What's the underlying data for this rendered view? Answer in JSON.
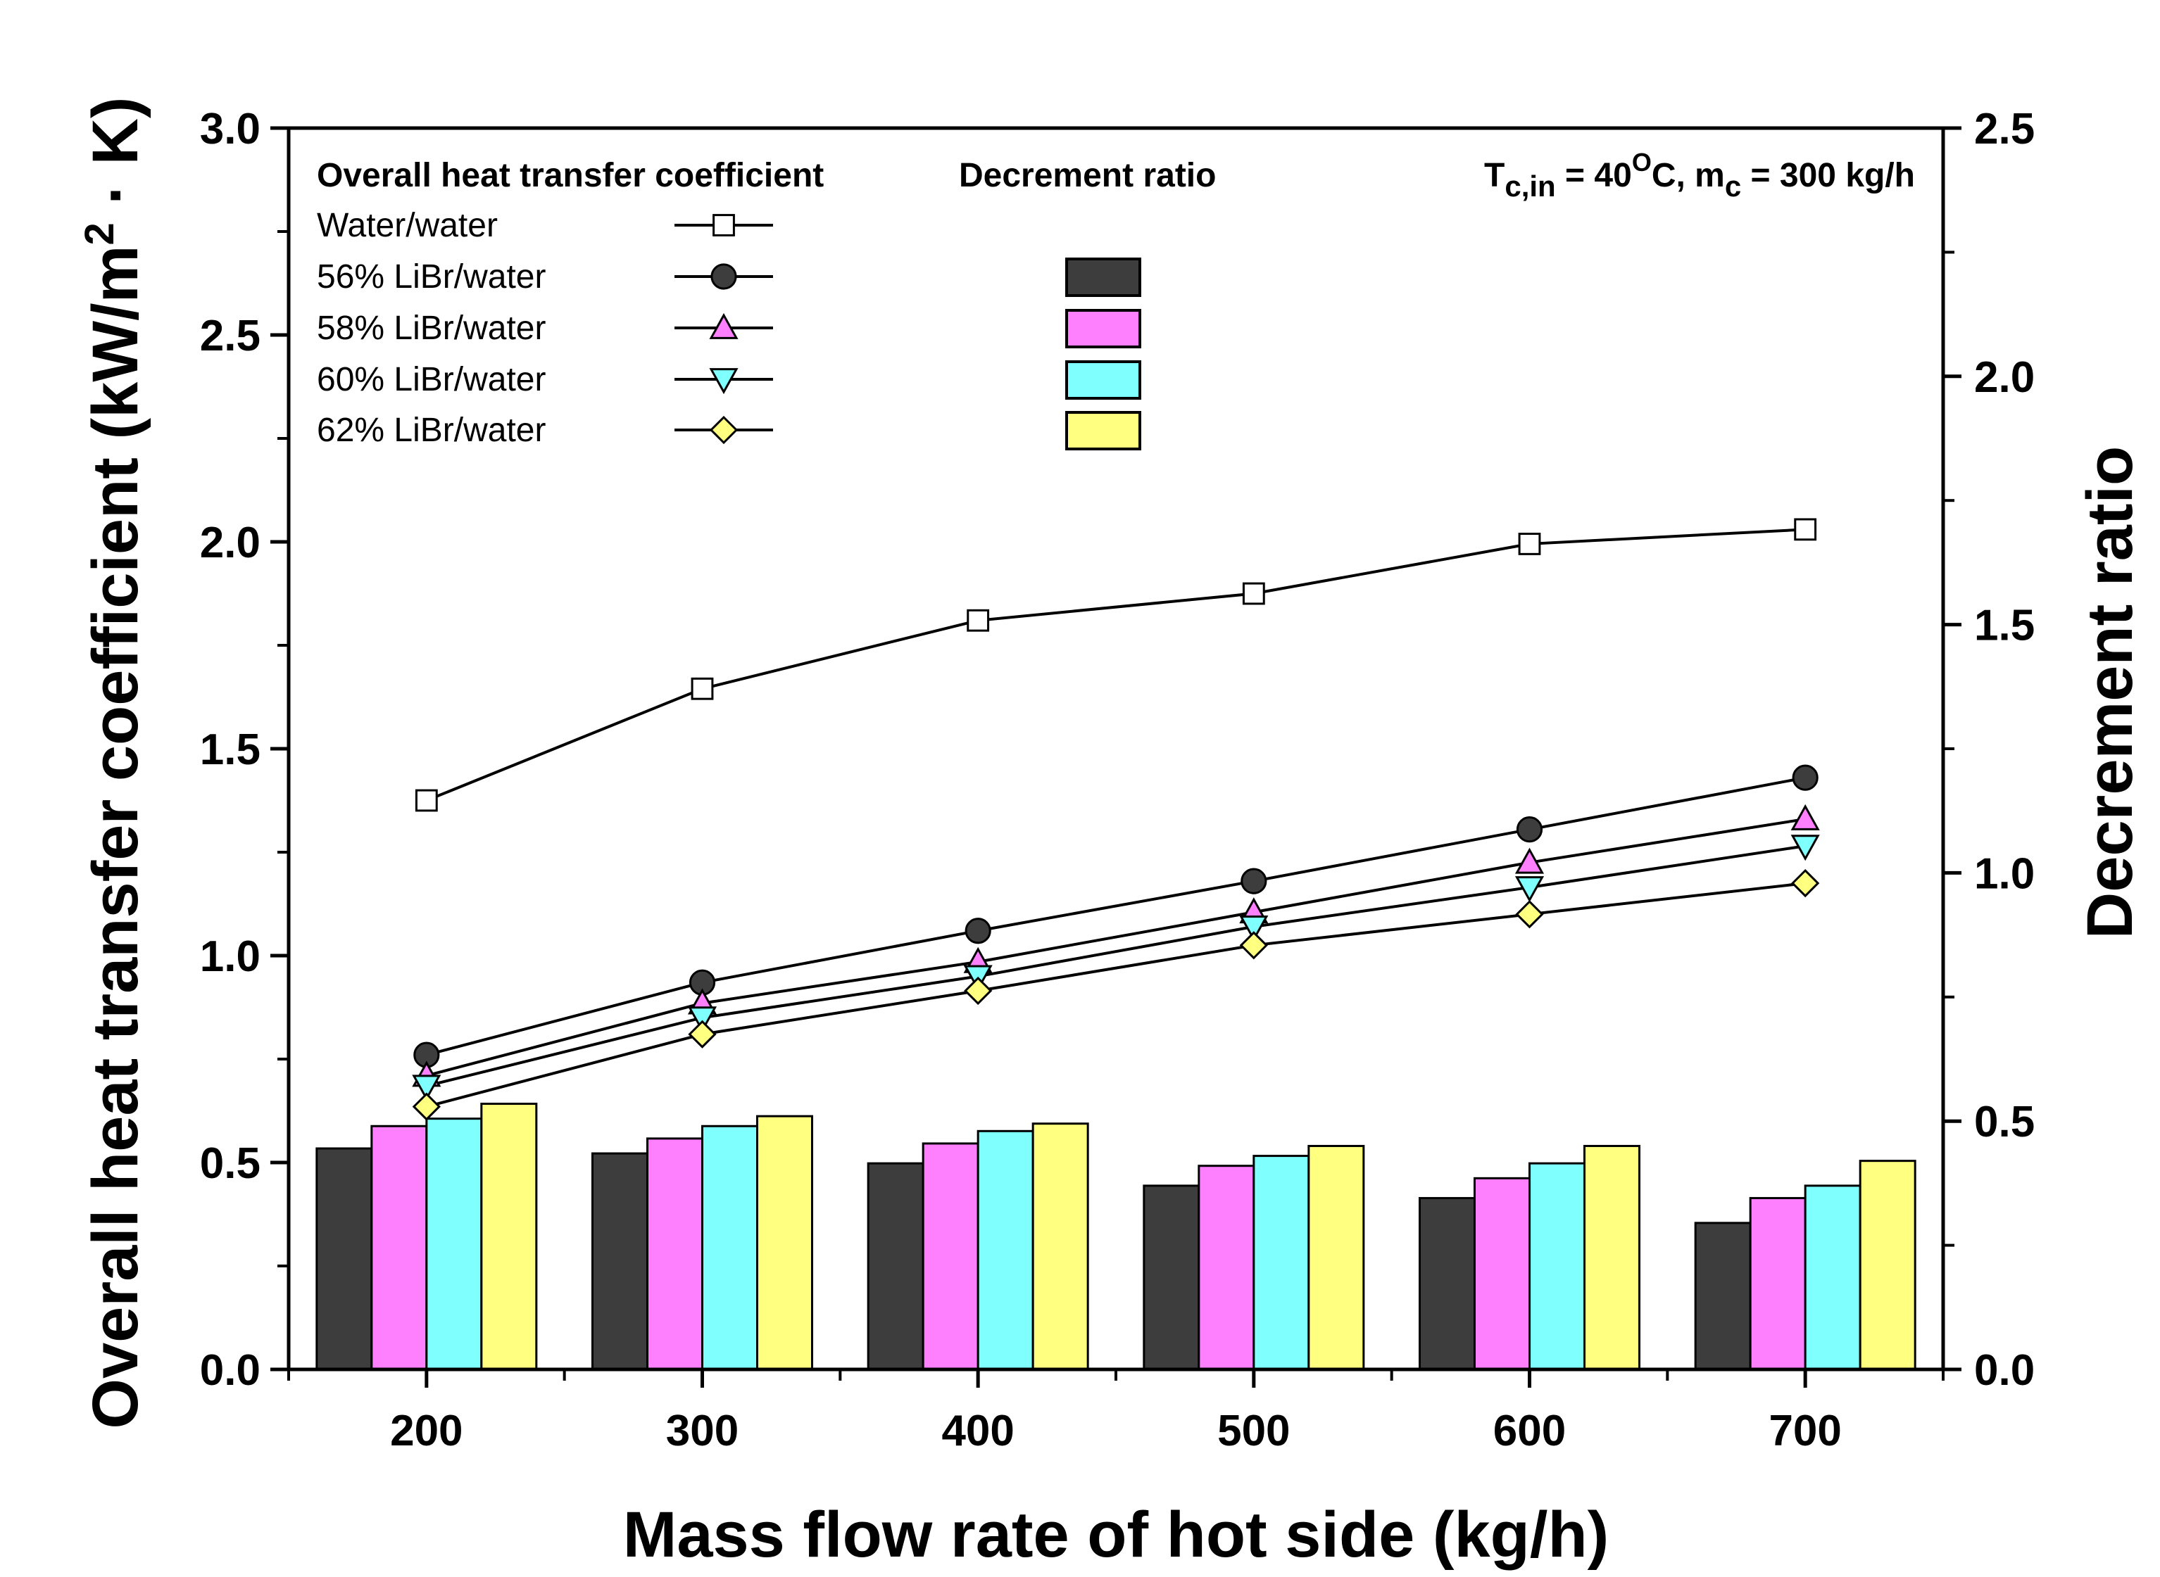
{
  "chart_data": {
    "type": "bar+line",
    "title": "",
    "xlabel": "Mass flow rate of hot side (kg/h)",
    "ylabel": "Overall heat transfer coefficient (kW/m² · K)",
    "ylabel_parts": {
      "main": "Overall heat transfer coefficient (kW/m",
      "sup": "2",
      "tail": " · K)"
    },
    "y2label": "Decrement ratio",
    "x": [
      200,
      300,
      400,
      500,
      600,
      700
    ],
    "x_ticks": [
      "200",
      "300",
      "400",
      "500",
      "600",
      "700"
    ],
    "xlim": [
      150,
      750
    ],
    "ylim": [
      0,
      3.0
    ],
    "y_ticks": [
      "0.0",
      "0.5",
      "1.0",
      "1.5",
      "2.0",
      "2.5",
      "3.0"
    ],
    "y2lim": [
      0,
      2.5
    ],
    "y2_ticks": [
      "0.0",
      "0.5",
      "1.0",
      "1.5",
      "2.0",
      "2.5"
    ],
    "annotation": {
      "text_pre": "T",
      "sub1": "c,in",
      "text_mid": " = 40",
      "sup": "O",
      "text_mid2": "C, m",
      "sub2": "c",
      "text_end": " = 300 kg/h"
    },
    "legend": {
      "header_coef": "Overall heat transfer coefficient",
      "header_ratio": "Decrement ratio"
    },
    "line_series": [
      {
        "name": "Water/water",
        "marker": "square",
        "fill": "#ffffff",
        "values": [
          1.375,
          1.645,
          1.81,
          1.875,
          1.995,
          2.03
        ]
      },
      {
        "name": "56% LiBr/water",
        "marker": "circle",
        "fill": "#3d3d3d",
        "values": [
          0.76,
          0.935,
          1.06,
          1.18,
          1.305,
          1.43
        ]
      },
      {
        "name": "58% LiBr/water",
        "marker": "triangle-up",
        "fill": "#ff80ff",
        "values": [
          0.71,
          0.885,
          0.985,
          1.105,
          1.225,
          1.33
        ]
      },
      {
        "name": "60% LiBr/water",
        "marker": "triangle-down",
        "fill": "#80ffff",
        "values": [
          0.685,
          0.85,
          0.95,
          1.07,
          1.165,
          1.265
        ]
      },
      {
        "name": "62% LiBr/water",
        "marker": "diamond",
        "fill": "#ffff80",
        "values": [
          0.635,
          0.81,
          0.915,
          1.025,
          1.1,
          1.175
        ]
      }
    ],
    "bar_series": [
      {
        "name": "56% LiBr/water",
        "color": "#3d3d3d",
        "values": [
          0.445,
          0.435,
          0.415,
          0.37,
          0.345,
          0.295
        ]
      },
      {
        "name": "58% LiBr/water",
        "color": "#ff80ff",
        "values": [
          0.49,
          0.465,
          0.455,
          0.41,
          0.385,
          0.345
        ]
      },
      {
        "name": "60% LiBr/water",
        "color": "#80ffff",
        "values": [
          0.505,
          0.49,
          0.48,
          0.43,
          0.415,
          0.37
        ]
      },
      {
        "name": "62% LiBr/water",
        "color": "#ffff80",
        "values": [
          0.535,
          0.51,
          0.495,
          0.45,
          0.45,
          0.42
        ]
      }
    ]
  }
}
